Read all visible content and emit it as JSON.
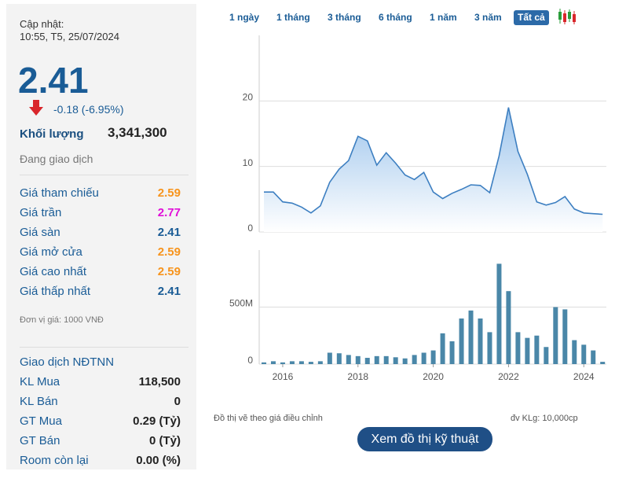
{
  "panel": {
    "update_label": "Cập nhật:",
    "update_time": "10:55, T5, 25/07/2024",
    "price": "2.41",
    "change": "-0.18 (-6.95%)",
    "volume_label": "Khối lượng",
    "volume": "3,341,300",
    "status": "Đang giao dịch",
    "price_rows": [
      {
        "label": "Giá tham chiếu",
        "value": "2.59",
        "color": "#f7941d"
      },
      {
        "label": "Giá trần",
        "value": "2.77",
        "color": "#e010d8"
      },
      {
        "label": "Giá sàn",
        "value": "2.41",
        "color": "#1a5c96"
      },
      {
        "label": "Giá mở cửa",
        "value": "2.59",
        "color": "#f7941d"
      },
      {
        "label": "Giá cao nhất",
        "value": "2.59",
        "color": "#f7941d"
      },
      {
        "label": "Giá thấp nhất",
        "value": "2.41",
        "color": "#1a5c96"
      }
    ],
    "unit_note": "Đơn vị giá: 1000 VNĐ",
    "foreign_title": "Giao dịch NĐTNN",
    "foreign_rows": [
      {
        "label": "KL Mua",
        "value": "118,500"
      },
      {
        "label": "KL Bán",
        "value": "0"
      },
      {
        "label": "GT Mua",
        "value": "0.29 (Tỷ)"
      },
      {
        "label": "GT Bán",
        "value": "0 (Tỷ)"
      },
      {
        "label": "Room còn lại",
        "value": "0.00 (%)"
      }
    ]
  },
  "tabs": {
    "items": [
      "1 ngày",
      "1 tháng",
      "3 tháng",
      "6 tháng",
      "1 năm",
      "3 năm",
      "Tất cả"
    ],
    "active": 6
  },
  "chart_data": [
    {
      "type": "area",
      "color": "#3d7fc1",
      "grid": true,
      "x": [
        2015.5,
        2015.75,
        2016,
        2016.25,
        2016.5,
        2016.75,
        2017,
        2017.25,
        2017.5,
        2017.75,
        2018,
        2018.25,
        2018.5,
        2018.75,
        2019,
        2019.25,
        2019.5,
        2019.75,
        2020,
        2020.25,
        2020.5,
        2020.75,
        2021,
        2021.25,
        2021.5,
        2021.75,
        2022,
        2022.25,
        2022.5,
        2022.75,
        2023,
        2023.25,
        2023.5,
        2023.75,
        2024,
        2024.25,
        2024.5
      ],
      "values": [
        6.1,
        6.1,
        4.6,
        4.4,
        3.8,
        2.9,
        4.0,
        7.6,
        9.6,
        10.9,
        14.6,
        13.9,
        10.2,
        12.1,
        10.5,
        8.7,
        8.0,
        9.1,
        6.1,
        5.1,
        5.9,
        6.5,
        7.2,
        7.1,
        6.0,
        11.6,
        19.0,
        12.3,
        8.8,
        4.6,
        4.1,
        4.5,
        5.4,
        3.5,
        2.9,
        2.8,
        2.7
      ],
      "xlim": [
        2015.375,
        2024.6
      ],
      "ylim": [
        0,
        30
      ],
      "yticks": [
        0,
        10,
        20
      ]
    },
    {
      "type": "bar",
      "color": "#4a87a8",
      "grid": true,
      "x": [
        2015.5,
        2015.75,
        2016,
        2016.25,
        2016.5,
        2016.75,
        2017,
        2017.25,
        2017.5,
        2017.75,
        2018,
        2018.25,
        2018.5,
        2018.75,
        2019,
        2019.25,
        2019.5,
        2019.75,
        2020,
        2020.25,
        2020.5,
        2020.75,
        2021,
        2021.25,
        2021.5,
        2021.75,
        2022,
        2022.25,
        2022.5,
        2022.75,
        2023,
        2023.25,
        2023.5,
        2023.75,
        2024,
        2024.25,
        2024.5
      ],
      "values": [
        15000000,
        25000000,
        15000000,
        25000000,
        25000000,
        20000000,
        25000000,
        100000000,
        95000000,
        80000000,
        70000000,
        55000000,
        70000000,
        70000000,
        60000000,
        50000000,
        80000000,
        100000000,
        120000000,
        270000000,
        200000000,
        400000000,
        470000000,
        400000000,
        280000000,
        880000000,
        640000000,
        280000000,
        230000000,
        250000000,
        150000000,
        500000000,
        480000000,
        210000000,
        170000000,
        120000000,
        20000000
      ],
      "xlim": [
        2015.375,
        2024.6
      ],
      "xticks": [
        2016,
        2018,
        2020,
        2022,
        2024
      ],
      "ylim": [
        0,
        1000000000
      ],
      "yticks": [
        0,
        {
          "value": 500000000,
          "label": "500M"
        }
      ]
    }
  ],
  "notes": {
    "adjusted": "Đồ thị vẽ theo giá điều chỉnh",
    "volume_unit": "đv KLg: 10,000cp"
  },
  "button": "Xem đồ thị kỹ thuật"
}
